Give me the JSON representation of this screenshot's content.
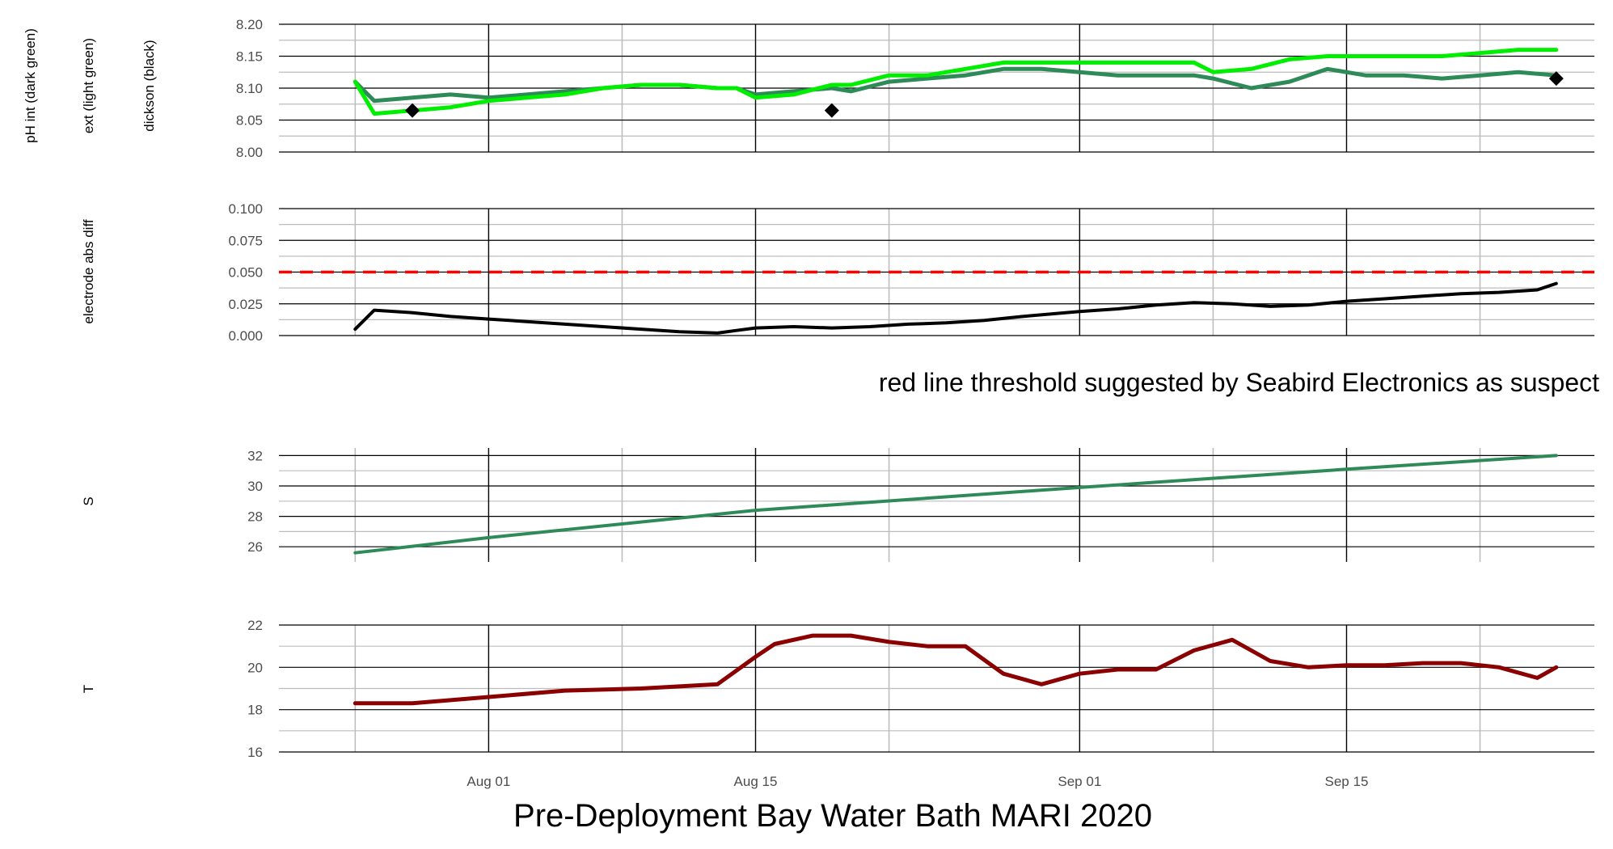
{
  "title": "Pre-Deployment Bay Water Bath MARI 2020",
  "annotation": "red line threshold suggested by Seabird Electronics as suspect",
  "x_axis": {
    "ticks": [
      "Aug 01",
      "Aug 15",
      "Sep 01",
      "Sep 15"
    ]
  },
  "colors": {
    "ph_int": "#2e8b57",
    "ph_ext": "#00ee00",
    "dickson": "#000000",
    "diff": "#000000",
    "threshold": "#ff0000",
    "salinity": "#2e8b57",
    "temperature": "#8b0000"
  },
  "chart_data": [
    {
      "type": "line",
      "panel": "ph",
      "ylabel_lines": [
        "pH int (dark green)",
        "ext (light green)",
        "dickson (black)"
      ],
      "ylim": [
        8.0,
        8.2
      ],
      "yticks": [
        "8.00",
        "8.05",
        "8.10",
        "8.15",
        "8.20"
      ],
      "x_range": [
        "2020-07-21",
        "2020-09-28"
      ],
      "grid": true,
      "series": [
        {
          "x": [
            "2020-07-25",
            "2020-07-26",
            "2020-07-28",
            "2020-07-30",
            "2020-08-01",
            "2020-08-03",
            "2020-08-05",
            "2020-08-07",
            "2020-08-09",
            "2020-08-11",
            "2020-08-13",
            "2020-08-14",
            "2020-08-15",
            "2020-08-17",
            "2020-08-19",
            "2020-08-20",
            "2020-08-22",
            "2020-08-24",
            "2020-08-26",
            "2020-08-28",
            "2020-08-30",
            "2020-09-01",
            "2020-09-03",
            "2020-09-05",
            "2020-09-07",
            "2020-09-08",
            "2020-09-10",
            "2020-09-12",
            "2020-09-14",
            "2020-09-16",
            "2020-09-18",
            "2020-09-20",
            "2020-09-22",
            "2020-09-24",
            "2020-09-26"
          ],
          "values": [
            8.11,
            8.08,
            8.085,
            8.09,
            8.085,
            8.09,
            8.095,
            8.1,
            8.105,
            8.105,
            8.1,
            8.1,
            8.09,
            8.095,
            8.1,
            8.095,
            8.11,
            8.115,
            8.12,
            8.13,
            8.13,
            8.125,
            8.12,
            8.12,
            8.12,
            8.115,
            8.1,
            8.11,
            8.13,
            8.12,
            8.12,
            8.115,
            8.12,
            8.125,
            8.12
          ]
        },
        {
          "x": [
            "2020-07-25",
            "2020-07-26",
            "2020-07-28",
            "2020-07-30",
            "2020-08-01",
            "2020-08-03",
            "2020-08-05",
            "2020-08-07",
            "2020-08-09",
            "2020-08-11",
            "2020-08-13",
            "2020-08-14",
            "2020-08-15",
            "2020-08-17",
            "2020-08-19",
            "2020-08-20",
            "2020-08-22",
            "2020-08-24",
            "2020-08-26",
            "2020-08-28",
            "2020-08-30",
            "2020-09-01",
            "2020-09-03",
            "2020-09-05",
            "2020-09-07",
            "2020-09-08",
            "2020-09-10",
            "2020-09-12",
            "2020-09-14",
            "2020-09-16",
            "2020-09-18",
            "2020-09-20",
            "2020-09-22",
            "2020-09-24",
            "2020-09-26"
          ],
          "values": [
            8.11,
            8.06,
            8.065,
            8.07,
            8.08,
            8.085,
            8.09,
            8.1,
            8.105,
            8.105,
            8.1,
            8.1,
            8.085,
            8.09,
            8.105,
            8.105,
            8.12,
            8.12,
            8.13,
            8.14,
            8.14,
            8.14,
            8.14,
            8.14,
            8.14,
            8.125,
            8.13,
            8.145,
            8.15,
            8.15,
            8.15,
            8.15,
            8.155,
            8.16,
            8.16
          ]
        },
        {
          "x": [
            "2020-07-28",
            "2020-08-19",
            "2020-09-26"
          ],
          "values": [
            8.065,
            8.065,
            8.115
          ]
        }
      ]
    },
    {
      "type": "line",
      "panel": "diff",
      "ylabel": "electrode abs diff",
      "ylim": [
        0.0,
        0.1
      ],
      "yticks": [
        "0.000",
        "0.025",
        "0.050",
        "0.075",
        "0.100"
      ],
      "x_range": [
        "2020-07-21",
        "2020-09-28"
      ],
      "threshold": 0.05,
      "series": [
        {
          "x": [
            "2020-07-25",
            "2020-07-26",
            "2020-07-28",
            "2020-07-30",
            "2020-08-01",
            "2020-08-03",
            "2020-08-05",
            "2020-08-07",
            "2020-08-09",
            "2020-08-11",
            "2020-08-13",
            "2020-08-14",
            "2020-08-15",
            "2020-08-17",
            "2020-08-19",
            "2020-08-21",
            "2020-08-23",
            "2020-08-25",
            "2020-08-27",
            "2020-08-29",
            "2020-09-01",
            "2020-09-03",
            "2020-09-05",
            "2020-09-07",
            "2020-09-09",
            "2020-09-11",
            "2020-09-13",
            "2020-09-15",
            "2020-09-17",
            "2020-09-19",
            "2020-09-21",
            "2020-09-23",
            "2020-09-25",
            "2020-09-26"
          ],
          "values": [
            0.005,
            0.02,
            0.018,
            0.015,
            0.013,
            0.011,
            0.009,
            0.007,
            0.005,
            0.003,
            0.002,
            0.004,
            0.006,
            0.007,
            0.006,
            0.007,
            0.009,
            0.01,
            0.012,
            0.015,
            0.019,
            0.021,
            0.024,
            0.026,
            0.025,
            0.023,
            0.024,
            0.027,
            0.029,
            0.031,
            0.033,
            0.034,
            0.036,
            0.041
          ]
        }
      ]
    },
    {
      "type": "line",
      "panel": "salinity",
      "ylabel": "S",
      "ylim": [
        25,
        32.5
      ],
      "yticks": [
        "26",
        "28",
        "30",
        "32"
      ],
      "x_range": [
        "2020-07-21",
        "2020-09-28"
      ],
      "series": [
        {
          "x": [
            "2020-07-25",
            "2020-08-01",
            "2020-08-15",
            "2020-09-01",
            "2020-09-15",
            "2020-09-26"
          ],
          "values": [
            25.6,
            26.6,
            28.4,
            29.9,
            31.1,
            32.0
          ]
        }
      ]
    },
    {
      "type": "line",
      "panel": "temperature",
      "ylabel": "T",
      "ylim": [
        16,
        22
      ],
      "yticks": [
        "16",
        "18",
        "20",
        "22"
      ],
      "x_range": [
        "2020-07-21",
        "2020-09-28"
      ],
      "series": [
        {
          "x": [
            "2020-07-25",
            "2020-07-28",
            "2020-08-01",
            "2020-08-05",
            "2020-08-09",
            "2020-08-13",
            "2020-08-15",
            "2020-08-16",
            "2020-08-18",
            "2020-08-20",
            "2020-08-22",
            "2020-08-24",
            "2020-08-26",
            "2020-08-28",
            "2020-08-30",
            "2020-09-01",
            "2020-09-03",
            "2020-09-05",
            "2020-09-07",
            "2020-09-09",
            "2020-09-11",
            "2020-09-13",
            "2020-09-15",
            "2020-09-17",
            "2020-09-19",
            "2020-09-21",
            "2020-09-23",
            "2020-09-25",
            "2020-09-26"
          ],
          "values": [
            18.3,
            18.3,
            18.6,
            18.9,
            19.0,
            19.2,
            20.5,
            21.1,
            21.5,
            21.5,
            21.2,
            21.0,
            21.0,
            19.7,
            19.2,
            19.7,
            19.9,
            19.9,
            20.8,
            21.3,
            20.3,
            20.0,
            20.1,
            20.1,
            20.2,
            20.2,
            20.0,
            19.5,
            20.0
          ]
        }
      ]
    }
  ]
}
